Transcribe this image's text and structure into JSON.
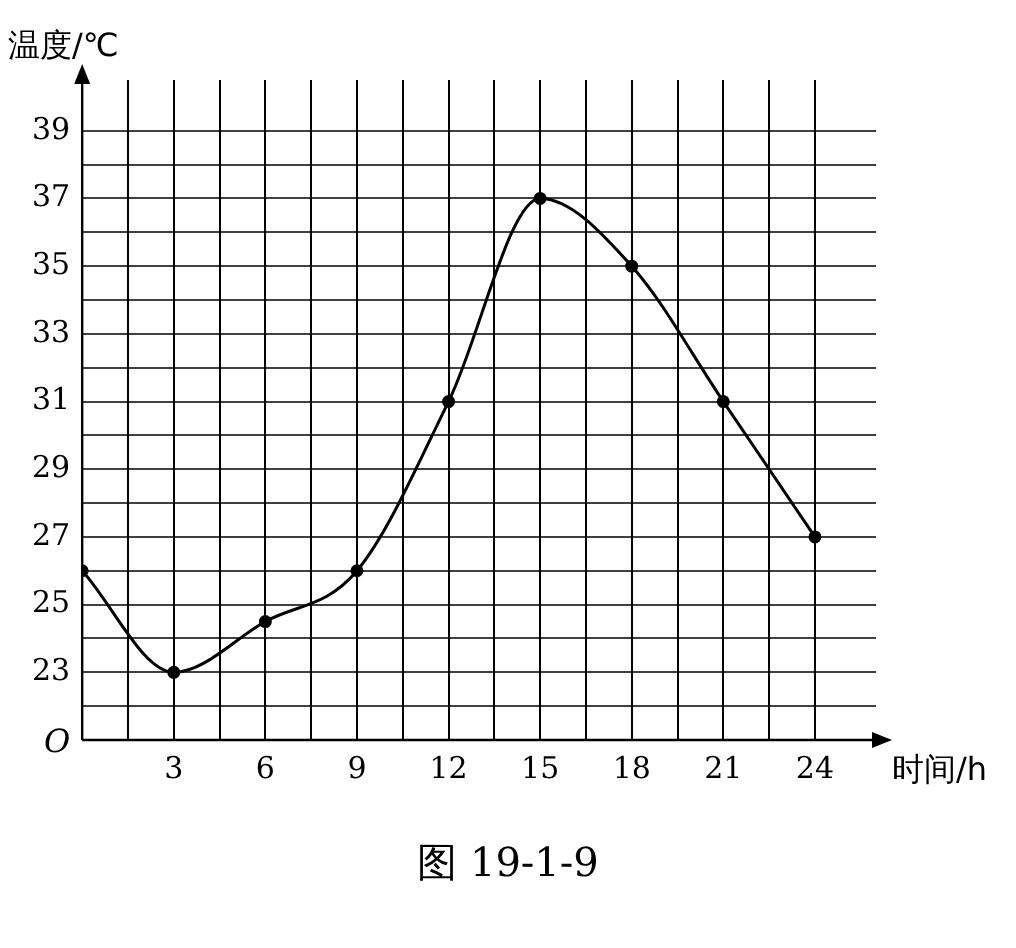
{
  "chart_data": {
    "type": "line",
    "xlabel": "时间/h",
    "ylabel": "温度/℃",
    "x": [
      0,
      3,
      6,
      9,
      12,
      15,
      18,
      21,
      24
    ],
    "values": [
      26,
      23,
      24.5,
      26,
      31,
      37,
      35,
      31,
      27
    ],
    "color": "#000000",
    "marker": "circle",
    "line_style": "solid",
    "grid": true,
    "xlim": [
      0,
      26
    ],
    "xticks": [
      {
        "value": 1.5,
        "label": null
      },
      3,
      {
        "value": 4.5,
        "label": null
      },
      6,
      {
        "value": 7.5,
        "label": null
      },
      9,
      {
        "value": 10.5,
        "label": null
      },
      12,
      {
        "value": 13.5,
        "label": null
      },
      15,
      {
        "value": 16.5,
        "label": null
      },
      18,
      {
        "value": 19.5,
        "label": null
      },
      21,
      {
        "value": 22.5,
        "label": null
      },
      24
    ],
    "ylim": [
      21,
      40.5
    ],
    "yticks": [
      {
        "value": 22,
        "label": null
      },
      23,
      {
        "value": 24,
        "label": null
      },
      25,
      {
        "value": 26,
        "label": null
      },
      27,
      {
        "value": 28,
        "label": null
      },
      29,
      {
        "value": 30,
        "label": null
      },
      31,
      {
        "value": 32,
        "label": null
      },
      33,
      {
        "value": 34,
        "label": null
      },
      35,
      {
        "value": 36,
        "label": null
      },
      37,
      {
        "value": 38,
        "label": null
      },
      39
    ],
    "annotations": [
      "O",
      "图 19-1-9"
    ]
  }
}
